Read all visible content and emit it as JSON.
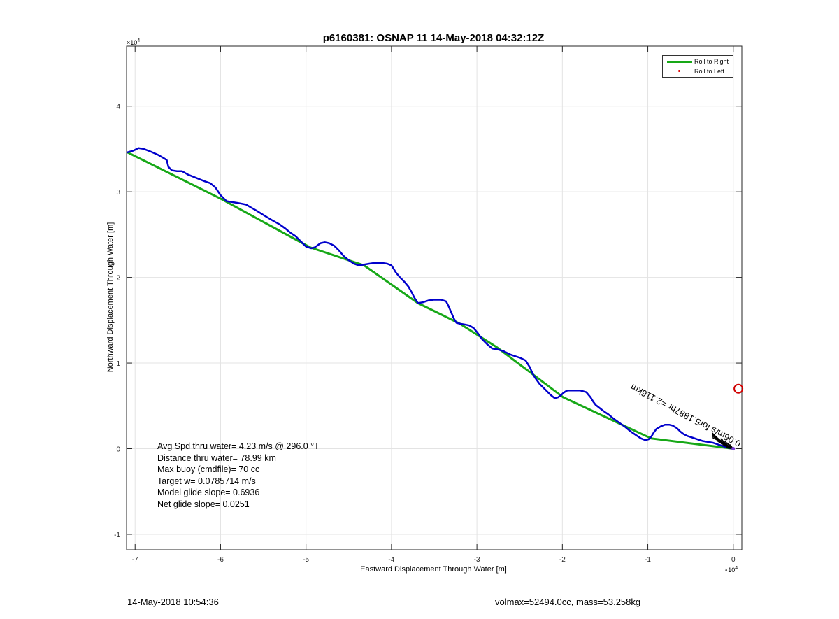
{
  "title": "p6160381: OSNAP 11 14-May-2018 04:32:12Z",
  "xlabel": "Eastward Displacement Through Water [m]",
  "ylabel": "Northward Displacement Through Water [m]",
  "x_exponent_base": "×10",
  "x_exponent_power": "4",
  "y_exponent_base": "×10",
  "y_exponent_power": "4",
  "legend": {
    "items": [
      {
        "label": "Roll to Right",
        "color": "#17a817",
        "style": "line"
      },
      {
        "label": "Roll to Left",
        "color": "#e00000",
        "style": "dot"
      }
    ]
  },
  "stats": {
    "avg_speed": "Avg Spd thru water=  4.23 m/s @ 296.0 °T",
    "distance": "Distance thru water= 78.99 km",
    "max_buoy": "Max buoy (cmdfile)= 70 cc",
    "target_w": "Target w= 0.0785714 m/s",
    "model_glide": "Model glide slope= 0.6936",
    "net_glide": "Net glide slope= 0.0251"
  },
  "annotation": "0.06m/s for5.1887hr =2.116km",
  "footer": {
    "timestamp": "14-May-2018 10:54:36",
    "vol_mass": "volmax=52494.0cc, mass=53.258kg"
  },
  "colors": {
    "track": "#0000cc",
    "glide_line": "#17a817",
    "marker": "#d00000"
  },
  "chart_data": {
    "type": "line",
    "title": "p6160381: OSNAP 11 14-May-2018 04:32:12Z",
    "xlabel": "Eastward Displacement Through Water [m]",
    "ylabel": "Northward Displacement Through Water [m]",
    "xlim": [
      -71000,
      1000
    ],
    "ylim": [
      -11800,
      47000
    ],
    "x_ticks": [
      -70000,
      -60000,
      -50000,
      -40000,
      -30000,
      -20000,
      -10000,
      0
    ],
    "x_tick_labels": [
      "-7",
      "-6",
      "-5",
      "-4",
      "-3",
      "-2",
      "-1",
      "0"
    ],
    "y_ticks": [
      -10000,
      0,
      10000,
      20000,
      30000,
      40000
    ],
    "y_tick_labels": [
      "-1",
      "0",
      "1",
      "2",
      "3",
      "4"
    ],
    "grid": true,
    "legend_position": "top-right",
    "series": [
      {
        "name": "Roll to Right",
        "color": "#17a817",
        "x": [
          -70900,
          -60000,
          -49500,
          -43200,
          -36900,
          -32000,
          -27600,
          -19900,
          -9600,
          0
        ],
        "y": [
          34600,
          29200,
          23500,
          21400,
          17000,
          14600,
          11800,
          6000,
          1200,
          0
        ]
      },
      {
        "color": "#0000cc",
        "x": [
          -70900,
          -70200,
          -69600,
          -69000,
          -68200,
          -67300,
          -66600,
          -66300,
          -66100,
          -65700,
          -65100,
          -64500,
          -63800,
          -62800,
          -61800,
          -61200,
          -60600,
          -60000,
          -59300,
          -58000,
          -57000,
          -56500,
          -55800,
          -55000,
          -54000,
          -53100,
          -52400,
          -51800,
          -51200,
          -50600,
          -50000,
          -49400,
          -49000,
          -48700,
          -48300,
          -47800,
          -47300,
          -46700,
          -46100,
          -45600,
          -45000,
          -44400,
          -43800,
          -43200,
          -42600,
          -41900,
          -41200,
          -40500,
          -40000,
          -39800,
          -39500,
          -39000,
          -38500,
          -38000,
          -37600,
          -37300,
          -36900,
          -36300,
          -35700,
          -35000,
          -34200,
          -33600,
          -33300,
          -33000,
          -32700,
          -32400,
          -32000,
          -31400,
          -30900,
          -30400,
          -29900,
          -29400,
          -28800,
          -28200,
          -27600,
          -26900,
          -26100,
          -25500,
          -24900,
          -24300,
          -23800,
          -23500,
          -23200,
          -22700,
          -22000,
          -21400,
          -20900,
          -20500,
          -20100,
          -19900,
          -19600,
          -19400,
          -19000,
          -18500,
          -17900,
          -17200,
          -16700,
          -16400,
          -16100,
          -15700,
          -15200,
          -14600,
          -14000,
          -13300,
          -12600,
          -12000,
          -11400,
          -10800,
          -10300,
          -9900,
          -9600,
          -9300,
          -9000,
          -8500,
          -8000,
          -7500,
          -7100,
          -6600,
          -6200,
          -5800,
          -5400,
          -4800,
          -4200,
          -3600,
          -3000,
          -2400,
          -1800,
          -1200,
          -600,
          0
        ],
        "y": [
          34600,
          34800,
          35100,
          35000,
          34700,
          34300,
          33900,
          33700,
          32900,
          32500,
          32400,
          32400,
          32000,
          31600,
          31200,
          31000,
          30500,
          29600,
          28900,
          28700,
          28500,
          28200,
          27800,
          27300,
          26700,
          26200,
          25700,
          25200,
          24800,
          24200,
          23600,
          23400,
          23500,
          23700,
          24000,
          24100,
          24000,
          23700,
          23100,
          22500,
          22000,
          21600,
          21400,
          21500,
          21600,
          21700,
          21700,
          21600,
          21400,
          21100,
          20600,
          20000,
          19500,
          18900,
          18200,
          17600,
          17000,
          17100,
          17300,
          17400,
          17400,
          17200,
          16600,
          15900,
          15200,
          14700,
          14600,
          14500,
          14400,
          14100,
          13500,
          12800,
          12200,
          11700,
          11600,
          11400,
          11000,
          10800,
          10600,
          10300,
          9500,
          8800,
          8300,
          7600,
          6900,
          6300,
          5900,
          6000,
          6300,
          6500,
          6700,
          6800,
          6800,
          6800,
          6800,
          6600,
          6000,
          5500,
          5100,
          4800,
          4400,
          4000,
          3500,
          3000,
          2500,
          2000,
          1600,
          1200,
          1000,
          1100,
          1400,
          1900,
          2300,
          2600,
          2800,
          2800,
          2700,
          2400,
          2000,
          1700,
          1500,
          1300,
          1100,
          900,
          800,
          700,
          500,
          300,
          100,
          0
        ]
      }
    ],
    "marker": {
      "x": 600,
      "y": 7000
    }
  }
}
